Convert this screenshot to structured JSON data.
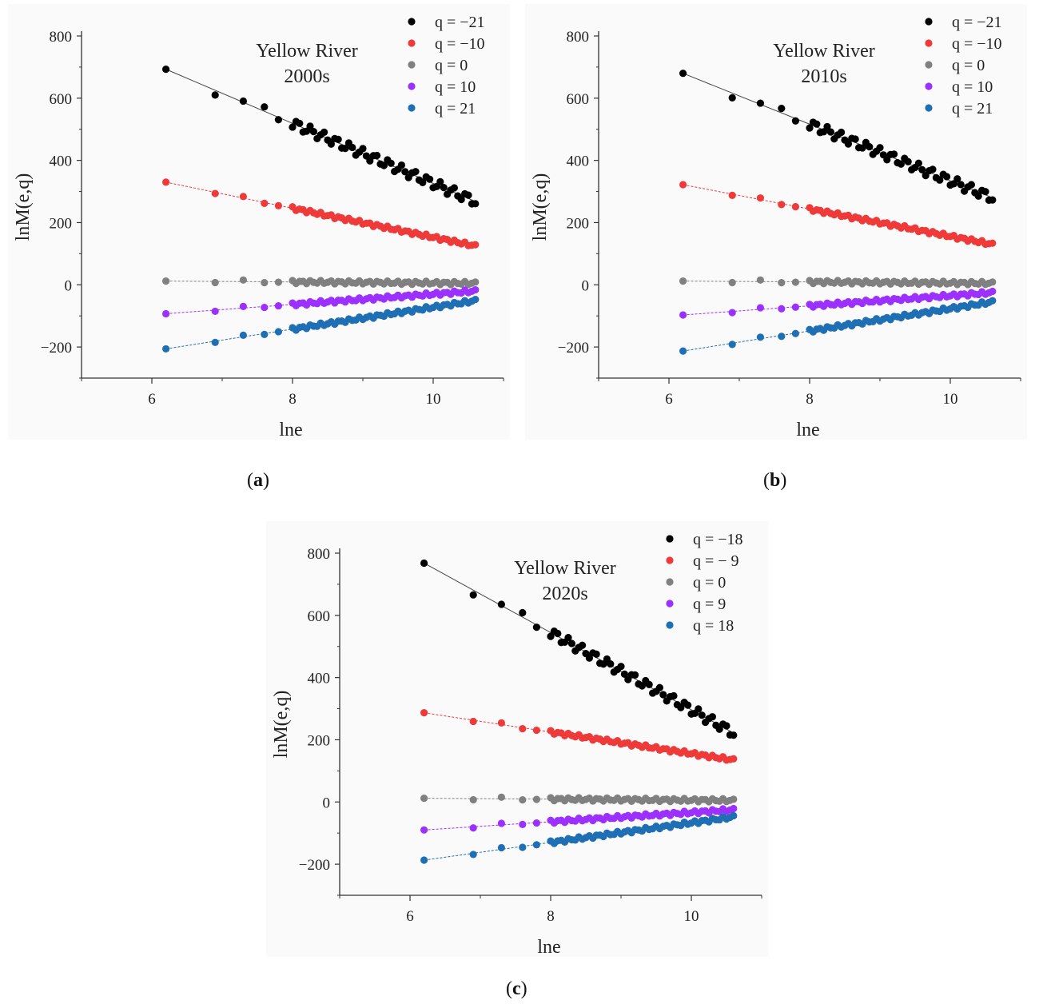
{
  "chart_data": [
    {
      "type": "scatter",
      "title": "Yellow River",
      "subtitle": "2000s",
      "xlabel": "lne",
      "ylabel": "lnM(e,q)",
      "xlim": [
        5,
        11
      ],
      "ylim": [
        -300,
        800
      ],
      "xticks": [
        6,
        8,
        10
      ],
      "yticks": [
        -200,
        0,
        200,
        400,
        600,
        800
      ],
      "x_start": 6.2,
      "x_end": 10.6,
      "legend_position": "top-right",
      "caption": "a",
      "series": [
        {
          "name": "q = −21",
          "color": "#000000",
          "y_start": 693,
          "y_end": 268
        },
        {
          "name": "q = −10",
          "color": "#ef3a3a",
          "y_start": 330,
          "y_end": 125
        },
        {
          "name": "q = 0",
          "color": "#808080",
          "y_start": 12,
          "y_end": 5
        },
        {
          "name": "q = 10",
          "color": "#9b30ff",
          "y_start": -93,
          "y_end": -20
        },
        {
          "name": "q = 21",
          "color": "#1f6fb4",
          "y_start": -206,
          "y_end": -51
        }
      ]
    },
    {
      "type": "scatter",
      "title": "Yellow River",
      "subtitle": "2010s",
      "xlabel": "lne",
      "ylabel": "lnM(e,q)",
      "xlim": [
        5,
        11
      ],
      "ylim": [
        -300,
        800
      ],
      "xticks": [
        6,
        8,
        10
      ],
      "yticks": [
        -200,
        0,
        200,
        400,
        600,
        800
      ],
      "x_start": 6.2,
      "x_end": 10.6,
      "legend_position": "top-right",
      "caption": "b",
      "series": [
        {
          "name": "q = −21",
          "color": "#000000",
          "y_start": 680,
          "y_end": 280
        },
        {
          "name": "q = −10",
          "color": "#ef3a3a",
          "y_start": 322,
          "y_end": 130
        },
        {
          "name": "q = 0",
          "color": "#808080",
          "y_start": 12,
          "y_end": 5
        },
        {
          "name": "q = 10",
          "color": "#9b30ff",
          "y_start": -97,
          "y_end": -25
        },
        {
          "name": "q = 21",
          "color": "#1f6fb4",
          "y_start": -213,
          "y_end": -55
        }
      ]
    },
    {
      "type": "scatter",
      "title": "Yellow River",
      "subtitle": "2020s",
      "xlabel": "lne",
      "ylabel": "lnM(e,q)",
      "xlim": [
        5,
        11
      ],
      "ylim": [
        -300,
        800
      ],
      "xticks": [
        6,
        8,
        10
      ],
      "yticks": [
        -200,
        0,
        200,
        400,
        600,
        800
      ],
      "x_start": 6.2,
      "x_end": 10.6,
      "legend_position": "top-right",
      "caption": "c",
      "series": [
        {
          "name": "q = −18",
          "color": "#000000",
          "y_start": 768,
          "y_end": 222
        },
        {
          "name": "q = − 9",
          "color": "#ef3a3a",
          "y_start": 287,
          "y_end": 135
        },
        {
          "name": "q = 0",
          "color": "#808080",
          "y_start": 12,
          "y_end": 5
        },
        {
          "name": "q = 9",
          "color": "#9b30ff",
          "y_start": -90,
          "y_end": -25
        },
        {
          "name": "q = 18",
          "color": "#1f6fb4",
          "y_start": -187,
          "y_end": -48
        }
      ]
    }
  ]
}
